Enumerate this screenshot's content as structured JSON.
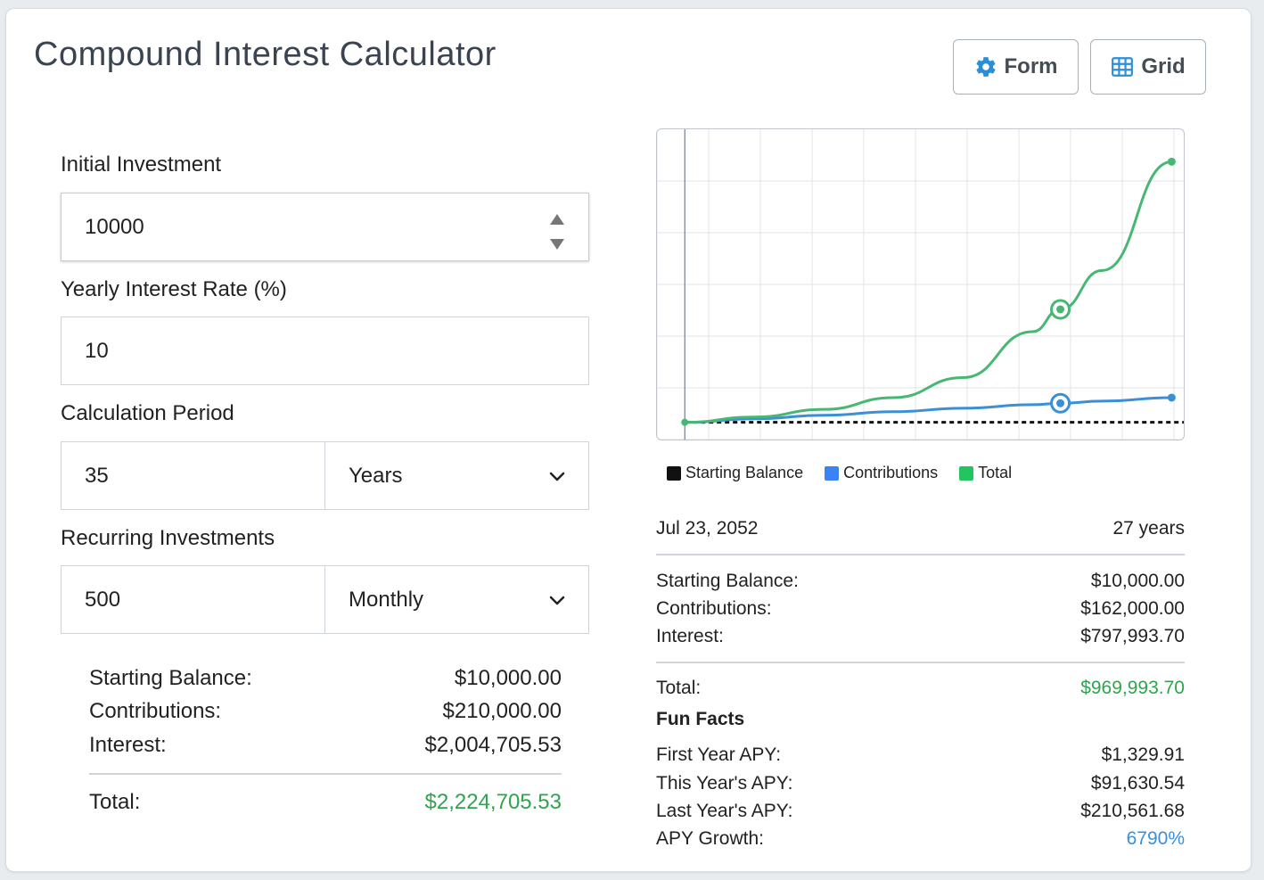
{
  "title": "Compound Interest Calculator",
  "buttons": {
    "form": "Form",
    "grid": "Grid"
  },
  "fields": {
    "initial_label": "Initial Investment",
    "initial_value": "10000",
    "rate_label": "Yearly Interest Rate (%)",
    "rate_value": "10",
    "period_label": "Calculation Period",
    "period_value": "35",
    "period_unit": "Years",
    "recurring_label": "Recurring Investments",
    "recurring_value": "500",
    "recurring_freq": "Monthly"
  },
  "summary": {
    "starting_label": "Starting Balance:",
    "starting_value": "$10,000.00",
    "contrib_label": "Contributions:",
    "contrib_value": "$210,000.00",
    "interest_label": "Interest:",
    "interest_value": "$2,004,705.53",
    "total_label": "Total:",
    "total_value": "$2,224,705.53"
  },
  "legend": {
    "starting": "Starting Balance",
    "contributions": "Contributions",
    "total": "Total"
  },
  "colors": {
    "starting": "#111111",
    "contributions": "#3b82f6",
    "total": "#22c55e",
    "total_line": "#48b774",
    "contrib_line": "#3a8fd6",
    "green_text": "#2fa44f",
    "blue_text": "#3b8fd9"
  },
  "snapshot": {
    "date": "Jul 23, 2052",
    "years": "27 years",
    "starting_label": "Starting Balance:",
    "starting_value": "$10,000.00",
    "contrib_label": "Contributions:",
    "contrib_value": "$162,000.00",
    "interest_label": "Interest:",
    "interest_value": "$797,993.70",
    "total_label": "Total:",
    "total_value": "$969,993.70"
  },
  "fun_facts": {
    "title": "Fun Facts",
    "first_label": "First Year APY:",
    "first_value": "$1,329.91",
    "this_label": "This Year's APY:",
    "this_value": "$91,630.54",
    "last_label": "Last Year's APY:",
    "last_value": "$210,561.68",
    "growth_label": "APY Growth:",
    "growth_value": "6790%"
  },
  "chart_data": {
    "type": "line",
    "x": [
      0,
      5,
      10,
      15,
      20,
      25,
      27,
      30,
      35
    ],
    "series": [
      {
        "name": "Starting Balance",
        "values": [
          10000,
          10000,
          10000,
          10000,
          10000,
          10000,
          10000,
          10000,
          10000
        ]
      },
      {
        "name": "Contributions",
        "values": [
          10000,
          40000,
          70000,
          100000,
          130000,
          160000,
          172000,
          190000,
          220000
        ]
      },
      {
        "name": "Total",
        "values": [
          10000,
          55000,
          120000,
          220000,
          390000,
          780000,
          969994,
          1300000,
          2224706
        ]
      }
    ],
    "highlight_x": 27,
    "ylim": [
      0,
      2500000
    ],
    "xlim": [
      -2,
      36
    ],
    "grid": true,
    "legend": "bottom"
  }
}
